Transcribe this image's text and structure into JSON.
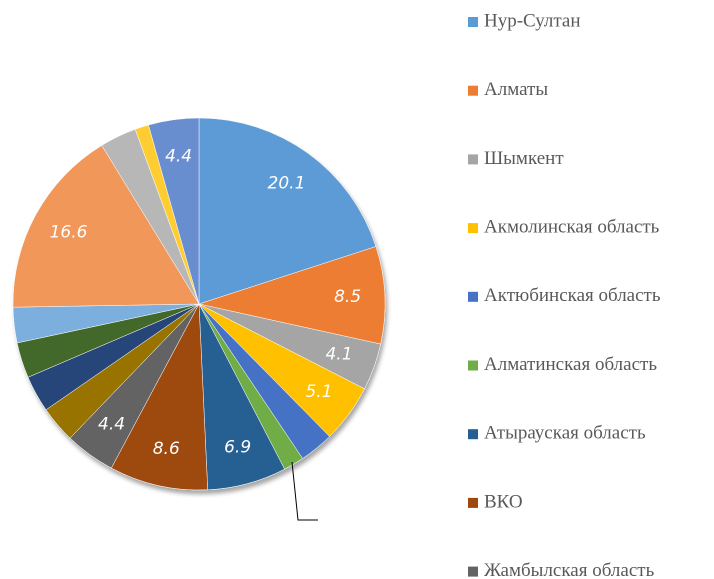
{
  "chart_data": {
    "type": "pie",
    "categories": [
      "Нур-Султан",
      "Алматы",
      "Шымкент",
      "Акмолинская  область",
      "Актюбинская область",
      "Алматинская область",
      "Атырауская область",
      "ВКО",
      "Жамбылская область",
      null,
      null,
      null,
      null,
      null,
      null,
      null,
      null
    ],
    "values": [
      20.1,
      8.5,
      4.1,
      5.1,
      3.0,
      1.8,
      6.9,
      8.6,
      4.4,
      3.2,
      3.2,
      3.1,
      3.1,
      16.6,
      3.2,
      1.2,
      4.4
    ],
    "value_labels": [
      "20.1",
      "8.5",
      "4.1",
      "5.1",
      null,
      null,
      "6.9",
      "8.6",
      "4.4",
      null,
      null,
      null,
      null,
      "16.6",
      null,
      null,
      "4.4"
    ],
    "colors": [
      "#5b9bd5",
      "#ed7d31",
      "#a5a5a5",
      "#ffc000",
      "#4472c4",
      "#70ad47",
      "#255e91",
      "#9e480e",
      "#636363",
      "#997300",
      "#264478",
      "#43682b",
      "#7cafdd",
      "#f1975a",
      "#b7b7b7",
      "#ffcd33",
      "#698ed0"
    ]
  }
}
